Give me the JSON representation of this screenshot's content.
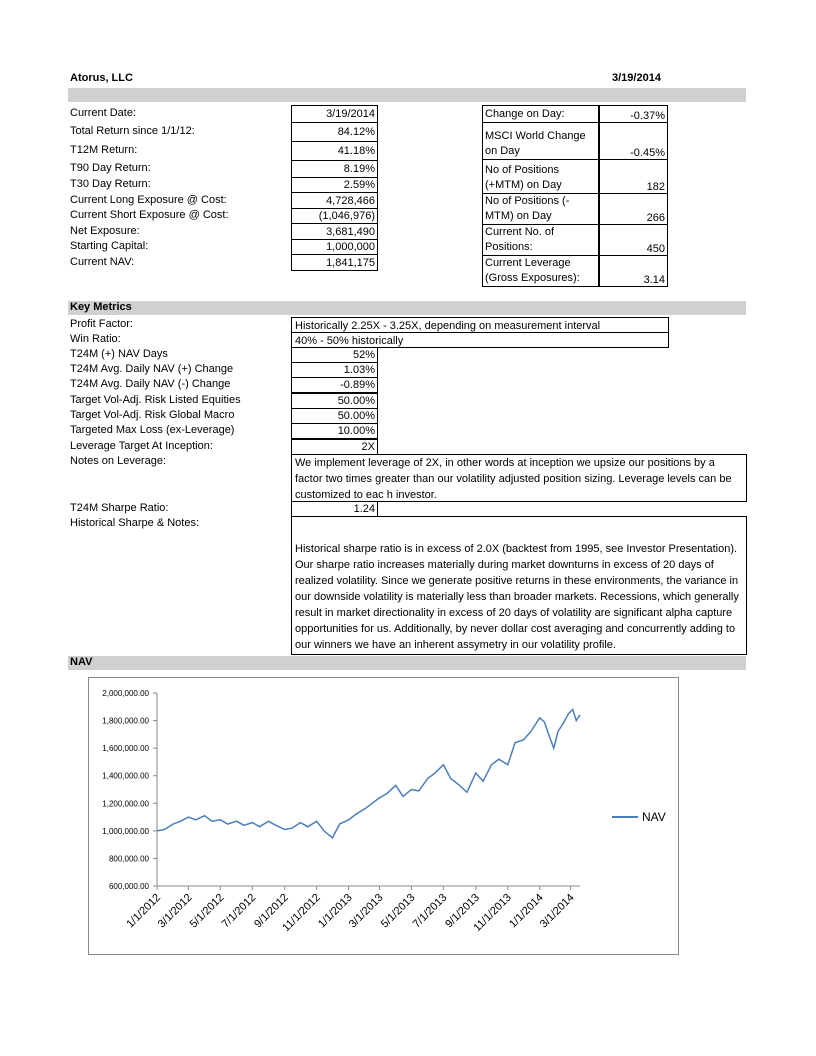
{
  "header": {
    "company": "Atorus, LLC",
    "date": "3/19/2014"
  },
  "summary": {
    "rows": [
      [
        "Current Date:",
        "3/19/2014"
      ],
      [
        "Total Return since 1/1/12:",
        "84.12%"
      ],
      [
        "T12M Return:",
        "41.18%"
      ],
      [
        "T90 Day Return:",
        "8.19%"
      ],
      [
        "T30 Day Return:",
        "2.59%"
      ],
      [
        "Current Long Exposure @ Cost:",
        "4,728,466"
      ],
      [
        "Current Short Exposure @ Cost:",
        "(1,046,976)"
      ],
      [
        "Net Exposure:",
        "3,681,490"
      ],
      [
        "Starting Capital:",
        "1,000,000"
      ],
      [
        "Current NAV:",
        "1,841,175"
      ]
    ]
  },
  "day_stats": {
    "rows": [
      [
        "Change on Day:",
        "-0.37%"
      ],
      [
        "MSCI World Change on Day",
        "-0.45%"
      ],
      [
        "No of Positions (+MTM) on Day",
        "182"
      ],
      [
        "No of Positions (-MTM) on Day",
        "266"
      ],
      [
        "Current No. of Positions:",
        "450"
      ],
      [
        "Current Leverage (Gross Exposures):",
        "3.14"
      ]
    ]
  },
  "key_metrics": {
    "title": "Key Metrics",
    "rows": [
      [
        "Profit Factor:",
        "Historically 2.25X - 3.25X, depending on measurement interval"
      ],
      [
        "Win Ratio:",
        "40% - 50% historically"
      ],
      [
        "T24M (+) NAV Days",
        "52%"
      ],
      [
        "T24M Avg. Daily NAV (+) Change",
        "1.03%"
      ],
      [
        "T24M Avg. Daily NAV (-) Change",
        "-0.89%"
      ],
      [
        "Target Vol-Adj. Risk Listed Equities",
        "50.00%"
      ],
      [
        "Target Vol-Adj. Risk Global Macro",
        "50.00%"
      ],
      [
        "Targeted Max Loss (ex-Leverage)",
        "10.00%"
      ],
      [
        "Leverage Target  At Inception:",
        "2X"
      ],
      [
        "Notes on Leverage:",
        "We implement leverage of 2X, in other words at inception we upsize our positions by a factor two times greater than our volatility adjusted position sizing. Leverage levels can be customized to eac h investor."
      ],
      [
        "T24M Sharpe Ratio:",
        "1.24"
      ],
      [
        "Historical Sharpe & Notes:",
        "Historical sharpe ratio is in excess of 2.0X (backtest from 1995, see Investor Presentation). Our sharpe ratio increases materially during market downturns in excess of 20 days of realized volatility. Since we generate positive returns in these environments, the variance in our downside volatility is materially less than broader markets. Recessions, which generally result in market directionality in excess of 20 days of volatility are significant alpha capture opportunities for us. Additionally, by never dollar cost averaging and concurrently adding to our winners we have an inherent assymetry in our volatility profile."
      ]
    ]
  },
  "nav_section": {
    "title": "NAV"
  },
  "chart_data": {
    "type": "line",
    "x": [
      "1/1/2012",
      "1/15/2012",
      "2/1/2012",
      "2/15/2012",
      "3/1/2012",
      "3/15/2012",
      "4/1/2012",
      "4/15/2012",
      "5/1/2012",
      "5/15/2012",
      "6/1/2012",
      "6/15/2012",
      "7/1/2012",
      "7/15/2012",
      "8/1/2012",
      "8/15/2012",
      "9/1/2012",
      "9/15/2012",
      "10/1/2012",
      "10/15/2012",
      "11/1/2012",
      "11/15/2012",
      "12/1/2012",
      "12/15/2012",
      "1/1/2013",
      "1/15/2013",
      "2/1/2013",
      "2/15/2013",
      "3/1/2013",
      "3/15/2013",
      "4/1/2013",
      "4/15/2013",
      "5/1/2013",
      "5/15/2013",
      "6/1/2013",
      "6/15/2013",
      "7/1/2013",
      "7/15/2013",
      "8/1/2013",
      "8/15/2013",
      "9/1/2013",
      "9/15/2013",
      "10/1/2013",
      "10/15/2013",
      "11/1/2013",
      "11/15/2013",
      "12/1/2013",
      "12/15/2013",
      "1/1/2014",
      "1/10/2014",
      "1/20/2014",
      "1/28/2014",
      "2/5/2014",
      "2/15/2014",
      "2/25/2014",
      "3/5/2014",
      "3/12/2014",
      "3/19/2014"
    ],
    "series": [
      {
        "name": "NAV",
        "color": "#4a7ebb",
        "values": [
          1000000,
          1010000,
          1050000,
          1070000,
          1100000,
          1080000,
          1110000,
          1070000,
          1080000,
          1050000,
          1070000,
          1040000,
          1060000,
          1030000,
          1070000,
          1040000,
          1010000,
          1020000,
          1060000,
          1030000,
          1070000,
          1000000,
          950000,
          1050000,
          1080000,
          1120000,
          1160000,
          1200000,
          1240000,
          1270000,
          1330000,
          1250000,
          1300000,
          1290000,
          1380000,
          1420000,
          1480000,
          1380000,
          1330000,
          1280000,
          1420000,
          1360000,
          1480000,
          1520000,
          1480000,
          1640000,
          1660000,
          1720000,
          1820000,
          1790000,
          1680000,
          1600000,
          1720000,
          1780000,
          1850000,
          1880000,
          1800000,
          1841175
        ]
      }
    ],
    "xlim": [
      "1/1/2012",
      "3/19/2014"
    ],
    "xticks": [
      "1/1/2012",
      "3/1/2012",
      "5/1/2012",
      "7/1/2012",
      "9/1/2012",
      "11/1/2012",
      "1/1/2013",
      "3/1/2013",
      "5/1/2013",
      "7/1/2013",
      "9/1/2013",
      "11/1/2013",
      "1/1/2014",
      "3/1/2014"
    ],
    "ylim": [
      600000,
      2000000
    ],
    "yticks": [
      {
        "value": 600000,
        "label": "600,000.00"
      },
      {
        "value": 800000,
        "label": "800,000.00"
      },
      {
        "value": 1000000,
        "label": "1,000,000.00"
      },
      {
        "value": 1200000,
        "label": "1,200,000.00"
      },
      {
        "value": 1400000,
        "label": "1,400,000.00"
      },
      {
        "value": 1600000,
        "label": "1,600,000.00"
      },
      {
        "value": 1800000,
        "label": "1,800,000.00"
      },
      {
        "value": 2000000,
        "label": "2,000,000.00"
      }
    ],
    "legend": "right"
  }
}
